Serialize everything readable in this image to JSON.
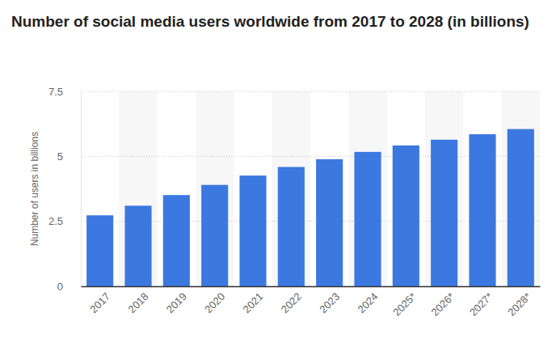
{
  "chart_data": {
    "type": "bar",
    "title": "Number of social media users worldwide from 2017 to 2028 (in billions)",
    "y_label": "Number of users in billions",
    "categories": [
      "2017",
      "2018",
      "2019",
      "2020",
      "2021",
      "2022",
      "2023",
      "2024",
      "2025*",
      "2026*",
      "2027*",
      "2028*"
    ],
    "values": [
      2.73,
      3.1,
      3.51,
      3.9,
      4.26,
      4.59,
      4.89,
      5.17,
      5.42,
      5.64,
      5.85,
      6.05
    ],
    "color": "#3b78e0",
    "ylim": [
      0,
      7.5
    ],
    "yticks": [
      0,
      2.5,
      5,
      7.5
    ],
    "grid": true
  }
}
